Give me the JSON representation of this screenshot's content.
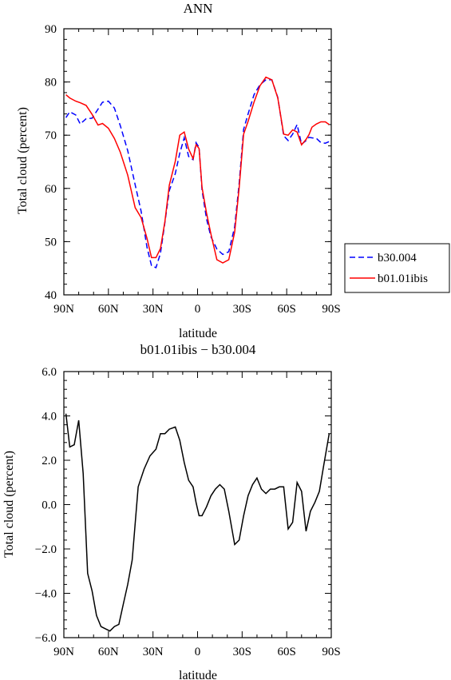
{
  "chart_data": [
    {
      "type": "line",
      "title": "ANN",
      "xlabel": "latitude",
      "ylabel": "Total cloud (percent)",
      "xlim": [
        90,
        -90
      ],
      "ylim": [
        40,
        90
      ],
      "xticks": [
        90,
        60,
        30,
        0,
        -30,
        -60,
        -90
      ],
      "xtick_labels": [
        "90N",
        "60N",
        "30N",
        "0",
        "30S",
        "60S",
        "90S"
      ],
      "yticks": [
        40,
        50,
        60,
        70,
        80,
        90
      ],
      "ytick_labels": [
        "40",
        "50",
        "60",
        "70",
        "80",
        "90"
      ],
      "legend_position": "right",
      "series": [
        {
          "name": "b30.004",
          "color": "#0000ff",
          "dash": "dashed",
          "x": [
            88.6,
            86,
            82,
            79,
            75,
            71,
            67,
            64,
            60,
            56,
            52,
            47,
            42,
            38,
            34,
            31,
            28,
            25,
            22,
            19,
            15,
            12,
            9,
            6,
            3,
            1,
            -1,
            -3,
            -6,
            -9,
            -13,
            -17,
            -21,
            -25,
            -28,
            -31,
            -34,
            -38,
            -42,
            -46,
            -50,
            -54,
            -58,
            -61,
            -64,
            -67,
            -70,
            -73,
            -75,
            -77,
            -80,
            -83,
            -86,
            -88.6
          ],
          "y": [
            73.3,
            74.4,
            73.8,
            72.1,
            73.1,
            73.2,
            74.9,
            76.2,
            76.4,
            75.1,
            71.8,
            67.1,
            60.7,
            55.7,
            48.9,
            45.5,
            45.1,
            47.8,
            53.6,
            59.6,
            62.8,
            66.6,
            69.5,
            66.0,
            65.4,
            68.6,
            67.7,
            59.7,
            54.3,
            50.9,
            48.6,
            47.6,
            48.1,
            52.8,
            60.9,
            71.1,
            74.0,
            77.6,
            79.5,
            80.4,
            80.4,
            77.1,
            69.9,
            69.0,
            70.2,
            72.0,
            68.3,
            69.0,
            69.6,
            69.5,
            69.4,
            68.6,
            68.5,
            68.8
          ]
        },
        {
          "name": "b01.01ibis",
          "color": "#ff0000",
          "dash": "solid",
          "x": [
            88.6,
            86,
            82,
            79,
            75,
            71,
            67,
            64,
            60,
            56,
            52,
            47,
            42,
            38,
            34,
            31,
            28,
            25,
            22,
            19,
            15,
            12,
            9,
            6,
            3,
            1,
            -1,
            -3,
            -6,
            -9,
            -13,
            -17,
            -21,
            -25,
            -28,
            -31,
            -34,
            -38,
            -42,
            -46,
            -50,
            -54,
            -58,
            -61,
            -64,
            -67,
            -70,
            -73,
            -75,
            -77,
            -80,
            -83,
            -86,
            -88.6
          ],
          "y": [
            77.6,
            77.0,
            76.4,
            76.1,
            75.6,
            73.9,
            71.9,
            72.2,
            71.3,
            69.4,
            66.8,
            62.5,
            56.4,
            54.5,
            50.6,
            47.0,
            47.0,
            48.7,
            53.8,
            60.6,
            65.1,
            70.0,
            70.6,
            67.4,
            65.6,
            68.2,
            67.5,
            60.2,
            55.4,
            51.4,
            46.6,
            46.0,
            46.6,
            51.8,
            60.1,
            70.2,
            72.6,
            76.2,
            79.3,
            80.9,
            80.4,
            77.0,
            70.2,
            70.0,
            71.0,
            70.6,
            68.2,
            69.2,
            70.1,
            71.5,
            72.1,
            72.5,
            72.5,
            72.0
          ]
        }
      ]
    },
    {
      "type": "line",
      "title": "b01.01ibis − b30.004",
      "xlabel": "latitude",
      "ylabel": "Total cloud (percent)",
      "xlim": [
        90,
        -90
      ],
      "ylim": [
        -6,
        6
      ],
      "xticks": [
        90,
        60,
        30,
        0,
        -30,
        -60,
        -90
      ],
      "xtick_labels": [
        "90N",
        "60N",
        "30N",
        "0",
        "30S",
        "60S",
        "90S"
      ],
      "yticks": [
        -6,
        -4,
        -2,
        0,
        2,
        4,
        6
      ],
      "ytick_labels": [
        "−6.0",
        "−4.0",
        "−2.0",
        "0.0",
        "2.0",
        "4.0",
        "6.0"
      ],
      "series": [
        {
          "color": "#000000",
          "dash": "solid",
          "x": [
            88.6,
            86,
            83,
            80,
            77,
            74,
            71,
            68,
            65,
            62,
            59,
            56,
            53,
            50,
            47,
            44,
            40,
            36,
            32,
            28,
            25,
            22,
            19,
            15,
            12,
            9,
            6,
            3,
            1,
            -1,
            -3,
            -6,
            -9,
            -12,
            -15,
            -18,
            -21,
            -25,
            -28,
            -31,
            -34,
            -37,
            -40,
            -43,
            -46,
            -49,
            -52,
            -55,
            -58,
            -61,
            -64,
            -67,
            -70,
            -73,
            -76,
            -79,
            -82,
            -85,
            -88.6
          ],
          "y": [
            4.1,
            2.6,
            2.7,
            3.8,
            1.4,
            -3.1,
            -3.9,
            -5.0,
            -5.5,
            -5.6,
            -5.7,
            -5.5,
            -5.4,
            -4.5,
            -3.6,
            -2.5,
            0.8,
            1.6,
            2.2,
            2.5,
            3.2,
            3.2,
            3.4,
            3.5,
            2.9,
            1.9,
            1.1,
            0.8,
            0.1,
            -0.5,
            -0.5,
            -0.1,
            0.4,
            0.7,
            0.9,
            0.7,
            -0.3,
            -1.8,
            -1.6,
            -0.5,
            0.4,
            0.9,
            1.2,
            0.7,
            0.5,
            0.7,
            0.7,
            0.8,
            0.8,
            -1.1,
            -0.8,
            1.0,
            0.6,
            -1.2,
            -0.3,
            0.1,
            0.6,
            1.8,
            3.2
          ]
        }
      ]
    }
  ]
}
